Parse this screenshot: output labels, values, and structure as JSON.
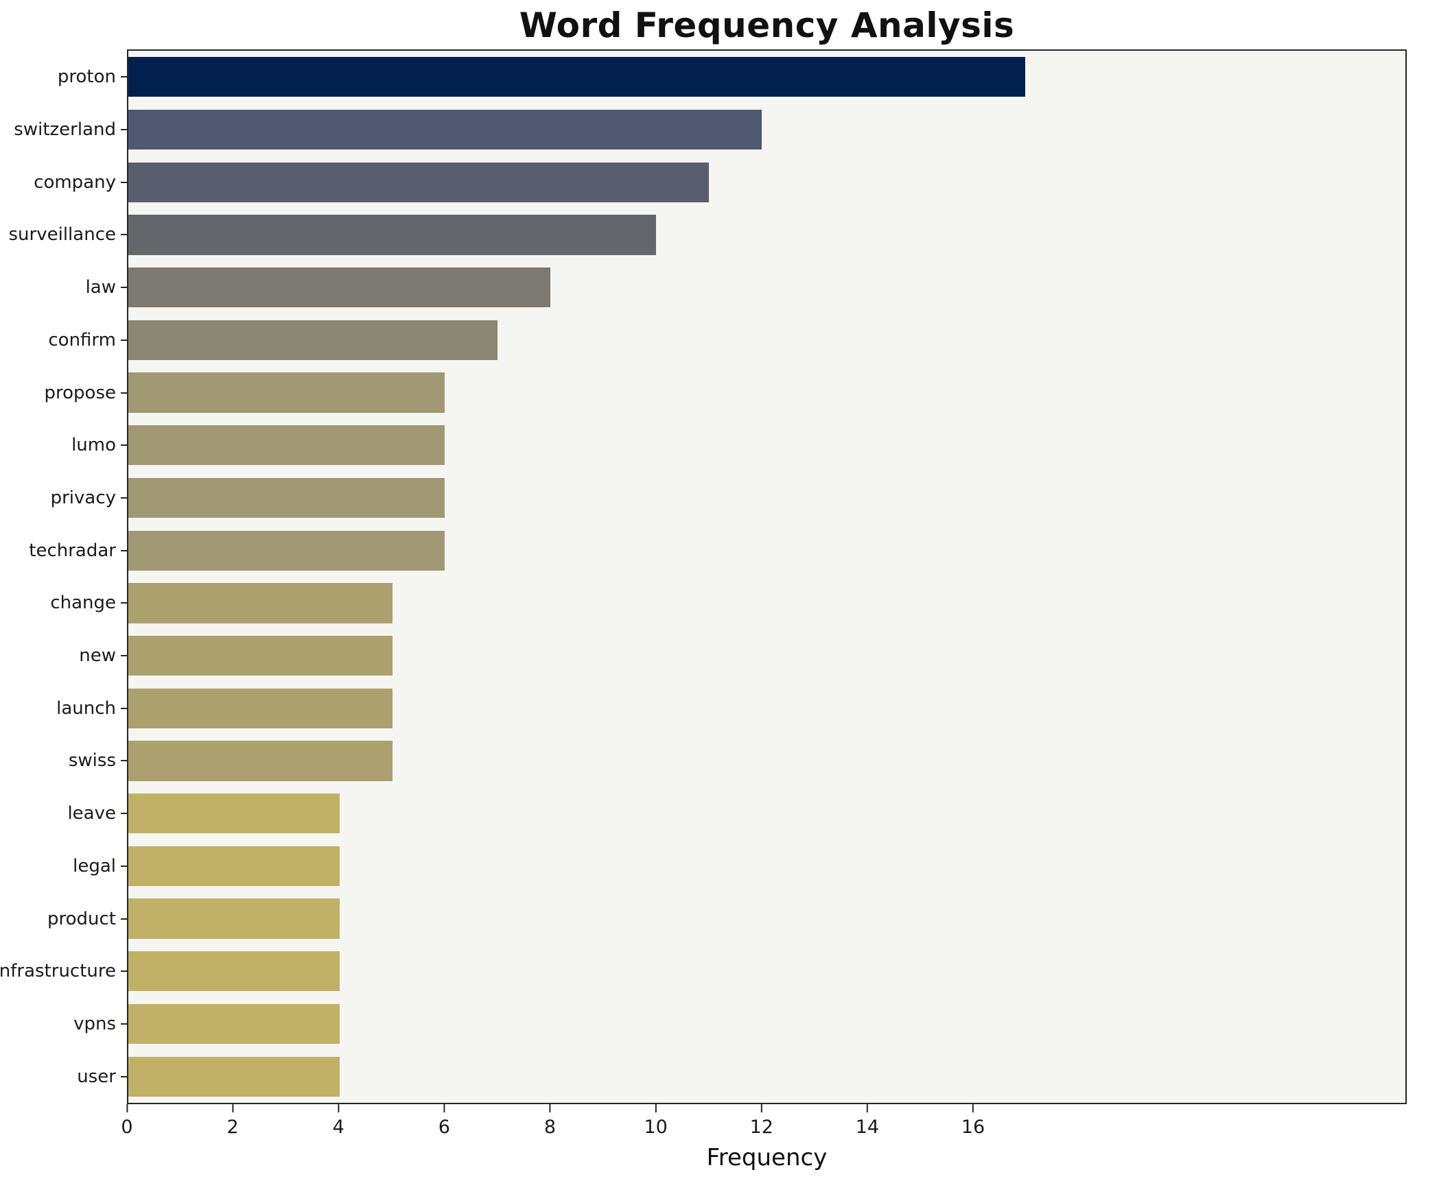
{
  "title": "Word Frequency Analysis",
  "xlabel": "Frequency",
  "chart_data": {
    "type": "bar",
    "orientation": "horizontal",
    "title": "Word Frequency Analysis",
    "xlabel": "Frequency",
    "ylabel": "",
    "categories": [
      "proton",
      "switzerland",
      "company",
      "surveillance",
      "law",
      "confirm",
      "propose",
      "lumo",
      "privacy",
      "techradar",
      "change",
      "new",
      "launch",
      "swiss",
      "leave",
      "legal",
      "product",
      "infrastructure",
      "vpns",
      "user"
    ],
    "values": [
      17,
      12,
      11,
      10,
      8,
      7,
      6,
      6,
      6,
      6,
      5,
      5,
      5,
      5,
      4,
      4,
      4,
      4,
      4,
      4
    ],
    "bar_colors": [
      "#02204d",
      "#4f5870",
      "#585e6e",
      "#64666b",
      "#7c7a73",
      "#8b8573",
      "#a09873",
      "#a09873",
      "#a09873",
      "#a09873",
      "#aca06f",
      "#aca06f",
      "#aca06f",
      "#aca06f",
      "#c0b167",
      "#c0b167",
      "#c0b167",
      "#c0b167",
      "#c0b167",
      "#c0b167"
    ],
    "xlim": [
      0,
      24.2
    ],
    "xticks": [
      0,
      2,
      4,
      6,
      8,
      10,
      12,
      14,
      16
    ],
    "grid": false,
    "legend": null,
    "plot_bg": "#f5f5f2",
    "fig_bg": "#ffffff",
    "spine_color": "#262626"
  }
}
